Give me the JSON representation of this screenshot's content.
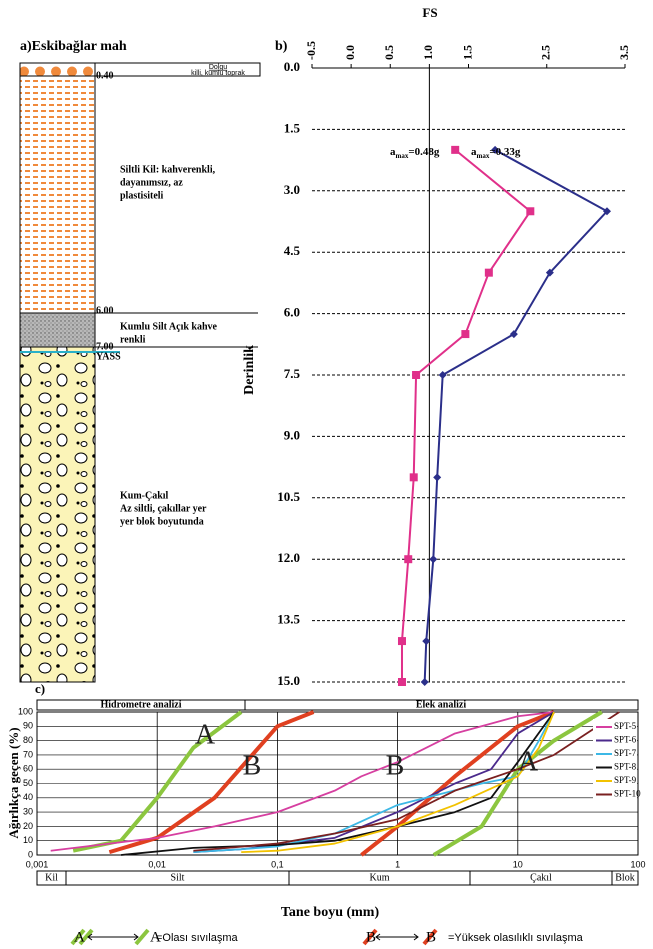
{
  "borehole": {
    "title": "a)Eskibağlar mah",
    "layers": [
      {
        "depth": "0.40",
        "name": "Dolgu",
        "desc": [
          "killi, kumlu toprak"
        ]
      },
      {
        "depth": "6.00",
        "desc": [
          "Siltli Kil: kahverenkli,",
          "dayanımsız, az",
          "plastisiteli"
        ]
      },
      {
        "depth": "7.00",
        "desc": [
          "Kumlu Silt Açık kahve",
          "renkli"
        ]
      },
      {
        "desc": [
          "Kum-Çakıl",
          "Az siltli, çakıllar yer",
          "yer blok boyutunda"
        ]
      }
    ],
    "water_label": "YASS"
  },
  "chart_data": [
    {
      "type": "line",
      "panel": "b)",
      "title": "FS",
      "y_label": "Derinlik",
      "y_reversed": true,
      "grid": true,
      "ref_line": 1,
      "xlim": [
        -0.5,
        3.5
      ],
      "xticks": [
        -0.5,
        {
          "value": 0,
          "label": "0.0"
        },
        0.5,
        {
          "value": 1,
          "label": "1.0"
        },
        1.5,
        2.5,
        3.5
      ],
      "ylim": [
        0,
        15
      ],
      "yticks": [
        {
          "value": 0,
          "label": "0.0"
        },
        1.5,
        {
          "value": 3,
          "label": "3.0"
        },
        4.5,
        {
          "value": 6,
          "label": "6.0"
        },
        7.5,
        {
          "value": 9,
          "label": "9.0"
        },
        10.5,
        {
          "value": 12,
          "label": "12.0"
        },
        13.5,
        {
          "value": 15,
          "label": "15.0"
        }
      ],
      "y": [
        2,
        3.5,
        5,
        6.5,
        7.5,
        10,
        12,
        14,
        15
      ],
      "series": [
        {
          "name": "0.48g",
          "prefix": "a",
          "sub": "max",
          "sep": "=",
          "marker": "square",
          "color": "#e0308a",
          "values": [
            1.33,
            2.29,
            1.76,
            1.46,
            0.83,
            0.8,
            0.73,
            0.65,
            0.65
          ]
        },
        {
          "name": "0.33g",
          "prefix": "a",
          "sub": "max",
          "sep": "=",
          "marker": "diamond",
          "color": "#2b2f8a",
          "values": [
            1.84,
            3.27,
            2.54,
            2.08,
            1.17,
            1.1,
            1.05,
            0.96,
            0.94
          ]
        }
      ]
    },
    {
      "type": "line",
      "panel": "c)",
      "x_label": "Tane boyu (mm)",
      "y_label": "Ağırlıkça geçen (%)",
      "log_x": true,
      "grid": true,
      "headers": [
        "Hidrometre analizi",
        "Elek analizi"
      ],
      "classes": [
        "Kil",
        "Silt",
        "Kum",
        "Çakıl",
        "Blok"
      ],
      "xlim": [
        0.001,
        100
      ],
      "xticks": [
        {
          "value": 0.001,
          "label": "0,001"
        },
        {
          "value": 0.01,
          "label": "0,01"
        },
        {
          "value": 0.1,
          "label": "0,1"
        },
        1,
        10,
        100
      ],
      "ylim": [
        0,
        100
      ],
      "yticks": [
        0,
        10,
        20,
        30,
        40,
        50,
        60,
        70,
        80,
        90,
        100
      ],
      "series": [
        {
          "name": "SPT-5",
          "color": "#d63fa0",
          "x": [
            0.0013,
            0.01,
            0.03,
            0.1,
            0.3,
            0.5,
            1,
            3,
            10,
            20
          ],
          "values": [
            3,
            12,
            20,
            30,
            45,
            55,
            65,
            85,
            97,
            100
          ]
        },
        {
          "name": "SPT-6",
          "color": "#4b2a8c",
          "x": [
            0.02,
            0.05,
            0.1,
            0.3,
            1,
            3,
            6,
            10,
            20
          ],
          "values": [
            2,
            4,
            7,
            12,
            30,
            50,
            60,
            85,
            100
          ]
        },
        {
          "name": "SPT-7",
          "color": "#3cb8e6",
          "x": [
            0.02,
            0.05,
            0.1,
            0.3,
            1,
            5,
            10,
            15,
            20
          ],
          "values": [
            2,
            4,
            6,
            15,
            35,
            50,
            55,
            80,
            100
          ]
        },
        {
          "name": "SPT-8",
          "color": "#111111",
          "x": [
            0.005,
            0.02,
            0.1,
            0.3,
            1,
            3,
            6,
            10,
            20
          ],
          "values": [
            0,
            5,
            7,
            10,
            20,
            30,
            40,
            65,
            100
          ]
        },
        {
          "name": "SPT-9",
          "color": "#f2c200",
          "x": [
            0.05,
            0.1,
            0.3,
            1,
            3,
            10,
            15,
            20
          ],
          "values": [
            2,
            3,
            8,
            20,
            35,
            55,
            75,
            100
          ]
        },
        {
          "name": "SPT-10",
          "color": "#7a2020",
          "x": [
            0.02,
            0.1,
            0.3,
            1,
            3,
            10,
            20,
            70
          ],
          "values": [
            3,
            8,
            15,
            25,
            45,
            60,
            70,
            100
          ]
        }
      ],
      "envelopes": [
        {
          "label": "A",
          "color": "#8cc63f",
          "x": [
            0.002,
            0.005,
            0.01,
            0.02,
            0.05
          ],
          "values": [
            3,
            10,
            40,
            75,
            100
          ]
        },
        {
          "label": "B",
          "color": "#e04020",
          "x": [
            0.004,
            0.01,
            0.03,
            0.1,
            0.2
          ],
          "values": [
            2,
            12,
            40,
            90,
            100
          ]
        },
        {
          "label": "B",
          "color": "#e04020",
          "x": [
            0.5,
            1,
            3,
            10,
            20
          ],
          "values": [
            0,
            20,
            55,
            90,
            100
          ]
        },
        {
          "label": "A",
          "color": "#8cc63f",
          "x": [
            2,
            5,
            10,
            20,
            50
          ],
          "values": [
            0,
            20,
            60,
            80,
            100
          ]
        }
      ],
      "key": [
        {
          "symbol": "A",
          "text": "=Olası sıvılaşma"
        },
        {
          "symbol": "B",
          "text": "=Yüksek olasılıklı sıvılaşma"
        }
      ]
    }
  ]
}
